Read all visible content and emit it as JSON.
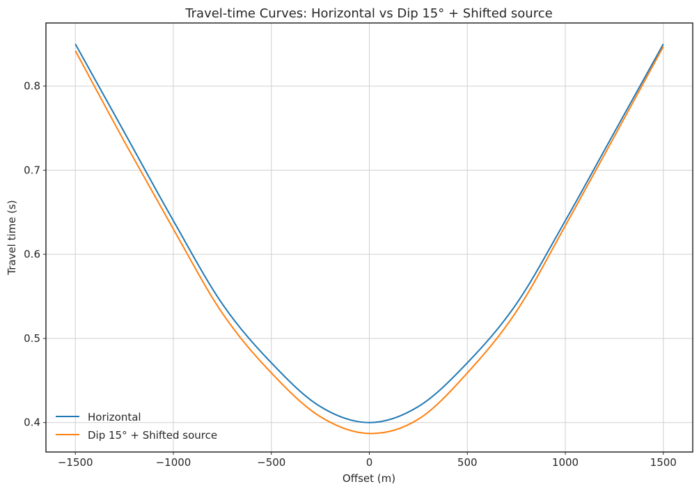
{
  "chart_data": {
    "type": "line",
    "title": "Travel-time Curves: Horizontal vs Dip 15° + Shifted source",
    "xlabel": "Offset (m)",
    "ylabel": "Travel time (s)",
    "xlim": [
      -1650,
      1650
    ],
    "ylim": [
      0.365,
      0.875
    ],
    "xticks": [
      -1500,
      -1000,
      -500,
      0,
      500,
      1000,
      1500
    ],
    "xtick_labels": [
      "−1500",
      "−1000",
      "−500",
      "0",
      "500",
      "1000",
      "1500"
    ],
    "yticks": [
      0.4,
      0.5,
      0.6,
      0.7,
      0.8
    ],
    "ytick_labels": [
      "0.4",
      "0.5",
      "0.6",
      "0.7",
      "0.8"
    ],
    "grid": true,
    "legend_position": "lower-left",
    "x": [
      -1500,
      -1250,
      -1000,
      -750,
      -500,
      -250,
      0,
      250,
      500,
      750,
      1000,
      1250,
      1500
    ],
    "series": [
      {
        "name": "Horizontal",
        "color": "#1f77b4",
        "values": [
          0.85,
          0.745,
          0.64,
          0.541,
          0.471,
          0.419,
          0.4,
          0.419,
          0.471,
          0.541,
          0.64,
          0.745,
          0.85
        ]
      },
      {
        "name": "Dip 15° + Shifted source",
        "color": "#ff7f0e",
        "values": [
          0.842,
          0.734,
          0.63,
          0.53,
          0.459,
          0.407,
          0.387,
          0.404,
          0.459,
          0.532,
          0.634,
          0.74,
          0.847
        ]
      }
    ]
  }
}
